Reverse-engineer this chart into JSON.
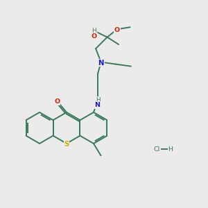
{
  "background_color": "#ebebeb",
  "bond_color": "#3a7a5a",
  "S_color": "#c8b400",
  "O_color": "#cc2200",
  "N_color": "#1a1acc",
  "C_color": "#3a7a5a",
  "lw": 1.4,
  "fs": 6.8,
  "xlim": [
    0,
    10
  ],
  "ylim": [
    0,
    10
  ]
}
